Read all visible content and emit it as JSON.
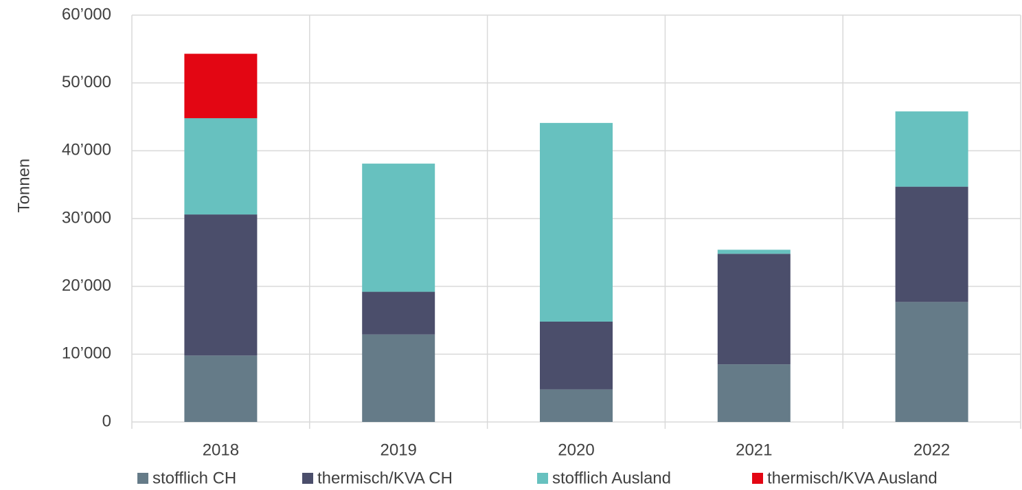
{
  "chart_data": {
    "type": "stacked_bar",
    "y_label": "Tonnen",
    "categories": [
      "2018",
      "2019",
      "2020",
      "2021",
      "2022"
    ],
    "series": [
      {
        "name": "stofflich CH",
        "color": "#657b88",
        "values": [
          9800,
          12900,
          4800,
          8500,
          17700
        ]
      },
      {
        "name": "thermisch/KVA CH",
        "color": "#4b4e6b",
        "values": [
          20800,
          6300,
          10000,
          16300,
          17000
        ]
      },
      {
        "name": "stofflich Ausland",
        "color": "#67c1bf",
        "values": [
          14200,
          18900,
          29300,
          600,
          11100
        ]
      },
      {
        "name": "thermisch/KVA Ausland",
        "color": "#e30613",
        "values": [
          9500,
          0,
          0,
          0,
          0
        ]
      }
    ],
    "ylim": [
      0,
      60000
    ],
    "yticks": [
      0,
      {
        "value": 10000,
        "label": "10’000"
      },
      {
        "value": 20000,
        "label": "20’000"
      },
      {
        "value": 30000,
        "label": "30’000"
      },
      {
        "value": 40000,
        "label": "40’000"
      },
      {
        "value": 50000,
        "label": "50’000"
      },
      {
        "value": 60000,
        "label": "60’000"
      }
    ],
    "grid": true,
    "legend": "bottom"
  }
}
